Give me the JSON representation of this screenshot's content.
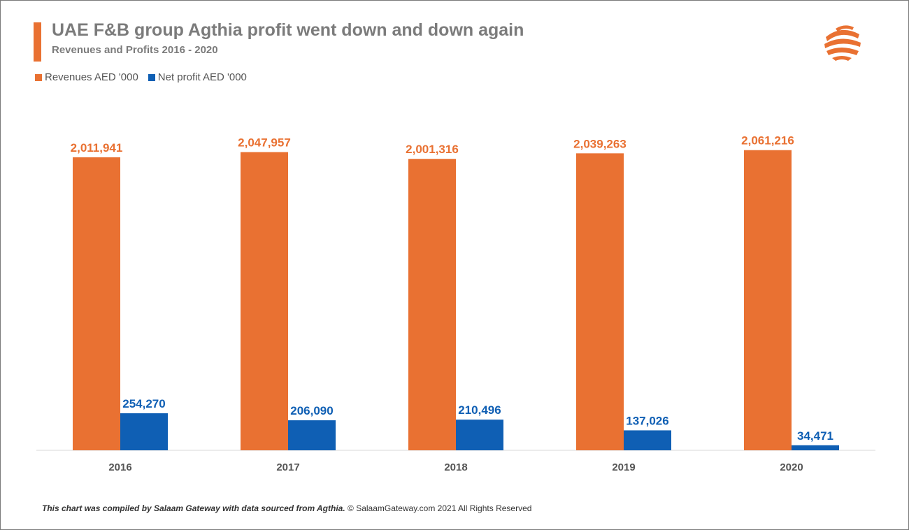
{
  "header": {
    "title": "UAE F&B group Agthia profit went down and down again",
    "subtitle": "Revenues and Profits 2016 - 2020"
  },
  "footer": {
    "credit": "This chart was compiled by Salaam Gateway with data sourced from Agthia.",
    "copyright": "© SalaamGateway.com 2021 All Rights Reserved"
  },
  "logo": {
    "icon": "salaam-gateway-globe-logo"
  },
  "colors": {
    "revenues": "#E97132",
    "net_profit": "#0F5FB4",
    "accent": "#E97132"
  },
  "chart_data": {
    "type": "bar",
    "title": "UAE F&B group Agthia profit went down and down again",
    "subtitle": "Revenues and Profits 2016 - 2020",
    "categories": [
      "2016",
      "2017",
      "2018",
      "2019",
      "2020"
    ],
    "series": [
      {
        "name": "Revenues AED '000",
        "color": "#E97132",
        "values": [
          2011941,
          2047957,
          2001316,
          2039263,
          2061216
        ],
        "labels": [
          "2,011,941",
          "2,047,957",
          "2,001,316",
          "2,039,263",
          "2,061,216"
        ]
      },
      {
        "name": "Net profit AED '000",
        "color": "#0F5FB4",
        "values": [
          254270,
          206090,
          210496,
          137026,
          34471
        ],
        "labels": [
          "254,270",
          "206,090",
          "210,496",
          "137,026",
          "34,471"
        ]
      }
    ],
    "ylim": [
      0,
      2500000
    ],
    "grid": false,
    "legend_position": "top-left",
    "xlabel": "",
    "ylabel": ""
  }
}
